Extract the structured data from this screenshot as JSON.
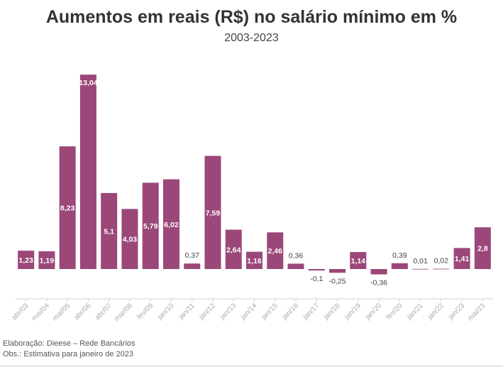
{
  "chart_data": {
    "type": "bar",
    "title": "Aumentos em reais (R$) no salário mínimo em %",
    "subtitle": "2003-2023",
    "categories": [
      "abr/03",
      "mai/04",
      "mai/05",
      "abr/06",
      "abr/07",
      "mar/08",
      "fev/09",
      "jan/10",
      "jan/11",
      "jan/12",
      "jan/13",
      "jan/14",
      "jan/15",
      "jan/16",
      "jan/17",
      "jan/18",
      "jan/19",
      "jan/20",
      "fev/20",
      "jan/21",
      "jan/22",
      "jan/23",
      "mai/23"
    ],
    "values": [
      1.23,
      1.19,
      8.23,
      13.04,
      5.1,
      4.03,
      5.79,
      6.02,
      0.37,
      7.59,
      2.64,
      1.16,
      2.46,
      0.36,
      -0.1,
      -0.25,
      1.14,
      -0.36,
      0.39,
      0.01,
      0.02,
      1.41,
      2.8
    ],
    "value_labels": [
      "1,23",
      "1,19",
      "8,23",
      "13,04",
      "5,1",
      "4,03",
      "5,79",
      "6,02",
      "0,37",
      "7,59",
      "2,64",
      "1,16",
      "2,46",
      "0,36",
      "-0,1",
      "-0,25",
      "1,14",
      "-0,36",
      "0,39",
      "0,01",
      "0,02",
      "1,41",
      "2,8"
    ],
    "ylim": [
      -1.4,
      13.1
    ],
    "grid": false,
    "bar_color": "#9b4779"
  },
  "footer": {
    "source": "Elaboração: Dieese – Rede Bancários",
    "note": "Obs.: Estimativa para janeiro de 2023"
  }
}
